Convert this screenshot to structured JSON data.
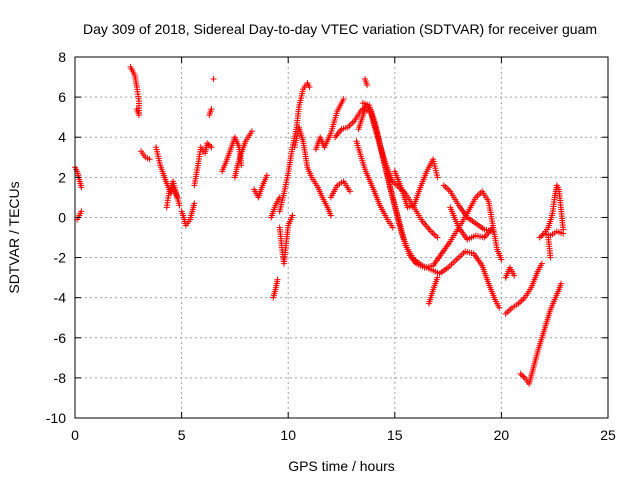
{
  "chart_data": {
    "type": "scatter",
    "title": "Day 309 of 2018, Sidereal Day-to-day VTEC variation (SDTVAR) for receiver guam",
    "xlabel": "GPS time / hours",
    "ylabel": "SDTVAR / TECUs",
    "xlim": [
      0,
      25
    ],
    "ylim": [
      -10,
      8
    ],
    "xticks": [
      "0",
      "5",
      "10",
      "15",
      "20",
      "25"
    ],
    "yticks": [
      "-10",
      "-8",
      "-6",
      "-4",
      "-2",
      "0",
      "2",
      "4",
      "6",
      "8"
    ],
    "grid": true,
    "marker": "+",
    "color": "#ff0000",
    "tracks": [
      [
        [
          0.0,
          2.5
        ],
        [
          0.1,
          2.3
        ],
        [
          0.2,
          1.9
        ],
        [
          0.3,
          1.5
        ]
      ],
      [
        [
          0.1,
          -0.1
        ],
        [
          0.2,
          0.1
        ],
        [
          0.3,
          0.3
        ]
      ],
      [
        [
          2.6,
          7.5
        ],
        [
          2.8,
          7.1
        ],
        [
          2.9,
          6.5
        ],
        [
          3.0,
          5.8
        ],
        [
          3.0,
          5.1
        ],
        [
          2.9,
          5.4
        ]
      ],
      [
        [
          3.1,
          3.3
        ],
        [
          3.3,
          3.0
        ],
        [
          3.5,
          2.9
        ]
      ],
      [
        [
          3.8,
          3.5
        ],
        [
          4.0,
          2.6
        ],
        [
          4.3,
          1.7
        ],
        [
          4.5,
          1.2
        ],
        [
          4.6,
          1.5
        ],
        [
          4.8,
          1.0
        ]
      ],
      [
        [
          4.3,
          0.5
        ],
        [
          4.4,
          1.2
        ],
        [
          4.6,
          1.8
        ],
        [
          4.9,
          0.6
        ]
      ],
      [
        [
          5.0,
          0.3
        ],
        [
          5.1,
          0.0
        ],
        [
          5.2,
          -0.4
        ],
        [
          5.4,
          -0.1
        ],
        [
          5.5,
          0.3
        ],
        [
          5.6,
          0.7
        ]
      ],
      [
        [
          5.6,
          1.6
        ],
        [
          5.8,
          2.8
        ],
        [
          5.9,
          3.5
        ],
        [
          6.1,
          3.2
        ],
        [
          6.2,
          3.7
        ],
        [
          6.4,
          3.5
        ]
      ],
      [
        [
          6.3,
          5.1
        ],
        [
          6.4,
          5.4
        ]
      ],
      [
        [
          6.5,
          6.9
        ]
      ],
      [
        [
          6.9,
          2.3
        ],
        [
          7.1,
          2.8
        ],
        [
          7.3,
          3.4
        ],
        [
          7.5,
          4.0
        ],
        [
          7.7,
          3.5
        ],
        [
          7.8,
          2.6
        ]
      ],
      [
        [
          7.5,
          2.0
        ],
        [
          7.6,
          2.5
        ],
        [
          7.8,
          3.2
        ],
        [
          8.0,
          3.8
        ],
        [
          8.3,
          4.3
        ]
      ],
      [
        [
          8.4,
          1.4
        ],
        [
          8.6,
          1.0
        ],
        [
          8.8,
          1.6
        ],
        [
          9.0,
          2.1
        ]
      ],
      [
        [
          9.2,
          0.0
        ],
        [
          9.4,
          0.6
        ],
        [
          9.6,
          1.0
        ]
      ],
      [
        [
          9.3,
          -4.0
        ],
        [
          9.4,
          -3.6
        ],
        [
          9.5,
          -3.1
        ]
      ],
      [
        [
          9.6,
          -0.5
        ],
        [
          9.7,
          -1.5
        ],
        [
          9.8,
          -2.3
        ],
        [
          10.0,
          -0.4
        ],
        [
          10.2,
          0.1
        ]
      ],
      [
        [
          9.6,
          0.3
        ],
        [
          9.8,
          1.2
        ],
        [
          10.0,
          2.2
        ],
        [
          10.2,
          3.5
        ],
        [
          10.4,
          4.5
        ],
        [
          10.5,
          5.5
        ],
        [
          10.7,
          6.4
        ],
        [
          10.9,
          6.7
        ],
        [
          11.0,
          6.5
        ]
      ],
      [
        [
          10.3,
          3.5
        ],
        [
          10.5,
          4.5
        ],
        [
          10.7,
          3.8
        ],
        [
          10.9,
          2.5
        ],
        [
          11.1,
          2.0
        ],
        [
          11.4,
          1.5
        ],
        [
          11.6,
          1.0
        ],
        [
          11.8,
          0.6
        ],
        [
          12.0,
          0.1
        ]
      ],
      [
        [
          11.3,
          3.4
        ],
        [
          11.5,
          4.0
        ],
        [
          11.7,
          3.5
        ],
        [
          12.0,
          4.2
        ],
        [
          12.3,
          5.3
        ],
        [
          12.6,
          5.9
        ]
      ],
      [
        [
          12.0,
          1.0
        ],
        [
          12.3,
          1.6
        ],
        [
          12.6,
          1.8
        ],
        [
          12.9,
          1.3
        ]
      ],
      [
        [
          12.2,
          4.0
        ],
        [
          12.5,
          4.4
        ],
        [
          12.8,
          4.5
        ],
        [
          13.1,
          4.8
        ],
        [
          13.4,
          5.3
        ],
        [
          13.7,
          5.6
        ],
        [
          13.9,
          5.3
        ],
        [
          14.1,
          4.6
        ],
        [
          14.3,
          3.6
        ],
        [
          14.6,
          2.3
        ],
        [
          14.9,
          1.0
        ],
        [
          15.2,
          -0.3
        ],
        [
          15.5,
          -1.4
        ],
        [
          15.9,
          -2.1
        ],
        [
          16.3,
          -2.4
        ],
        [
          16.7,
          -2.6
        ],
        [
          17.1,
          -2.8
        ],
        [
          17.5,
          -2.5
        ],
        [
          17.9,
          -2.1
        ],
        [
          18.3,
          -1.7
        ],
        [
          18.7,
          -1.8
        ],
        [
          19.1,
          -2.4
        ],
        [
          19.4,
          -3.3
        ],
        [
          19.7,
          -4.1
        ],
        [
          19.9,
          -4.5
        ]
      ],
      [
        [
          13.3,
          4.4
        ],
        [
          13.6,
          5.4
        ],
        [
          13.9,
          5.2
        ],
        [
          14.2,
          4.1
        ],
        [
          14.5,
          2.8
        ],
        [
          14.8,
          1.4
        ],
        [
          15.1,
          0.2
        ],
        [
          15.4,
          -1.0
        ],
        [
          15.7,
          -1.9
        ],
        [
          16.0,
          -2.3
        ],
        [
          16.4,
          -2.5
        ],
        [
          16.8,
          -2.4
        ],
        [
          17.2,
          -1.8
        ],
        [
          17.6,
          -1.2
        ],
        [
          18.0,
          -0.5
        ],
        [
          18.4,
          0.2
        ],
        [
          18.8,
          1.0
        ],
        [
          19.1,
          1.3
        ],
        [
          19.4,
          0.8
        ],
        [
          19.6,
          -0.4
        ],
        [
          19.8,
          -1.6
        ],
        [
          20.0,
          -2.1
        ]
      ],
      [
        [
          13.5,
          5.7
        ],
        [
          13.8,
          5.6
        ],
        [
          14.0,
          4.7
        ],
        [
          14.3,
          3.6
        ],
        [
          14.6,
          2.6
        ],
        [
          14.9,
          1.8
        ],
        [
          15.2,
          1.5
        ],
        [
          15.5,
          1.2
        ],
        [
          15.9,
          0.5
        ],
        [
          16.3,
          -0.2
        ],
        [
          16.7,
          -0.7
        ],
        [
          17.0,
          -1.0
        ]
      ],
      [
        [
          13.6,
          6.9
        ],
        [
          13.7,
          6.6
        ]
      ],
      [
        [
          13.2,
          3.8
        ],
        [
          13.6,
          2.4
        ],
        [
          14.0,
          1.4
        ],
        [
          14.3,
          0.6
        ],
        [
          14.6,
          0.0
        ],
        [
          14.9,
          -0.5
        ]
      ],
      [
        [
          15.0,
          2.3
        ],
        [
          15.3,
          1.5
        ],
        [
          15.6,
          0.5
        ],
        [
          15.9,
          0.6
        ],
        [
          16.2,
          1.5
        ],
        [
          16.5,
          2.3
        ],
        [
          16.8,
          2.9
        ],
        [
          17.0,
          2.0
        ]
      ],
      [
        [
          16.6,
          -4.3
        ],
        [
          16.8,
          -3.6
        ],
        [
          17.0,
          -3.0
        ]
      ],
      [
        [
          17.3,
          1.6
        ],
        [
          17.6,
          1.3
        ],
        [
          18.0,
          0.6
        ],
        [
          18.4,
          0.0
        ],
        [
          18.8,
          -0.3
        ],
        [
          19.2,
          -0.6
        ],
        [
          19.6,
          -0.7
        ]
      ],
      [
        [
          17.6,
          0.5
        ],
        [
          18.0,
          -0.5
        ],
        [
          18.4,
          -1.1
        ],
        [
          18.8,
          -0.9
        ],
        [
          19.2,
          -1.0
        ],
        [
          19.6,
          -0.5
        ]
      ],
      [
        [
          20.2,
          -3.0
        ],
        [
          20.4,
          -2.5
        ],
        [
          20.6,
          -2.9
        ]
      ],
      [
        [
          20.2,
          -4.8
        ],
        [
          20.5,
          -4.5
        ],
        [
          20.8,
          -4.3
        ],
        [
          21.1,
          -4.0
        ],
        [
          21.4,
          -3.5
        ],
        [
          21.7,
          -2.7
        ],
        [
          21.9,
          -2.3
        ]
      ],
      [
        [
          20.9,
          -7.8
        ],
        [
          21.1,
          -8.0
        ],
        [
          21.3,
          -8.3
        ],
        [
          21.5,
          -7.5
        ],
        [
          21.7,
          -6.7
        ],
        [
          21.9,
          -6.0
        ],
        [
          22.1,
          -5.3
        ],
        [
          22.3,
          -4.6
        ],
        [
          22.5,
          -4.1
        ],
        [
          22.7,
          -3.6
        ],
        [
          22.8,
          -3.3
        ]
      ],
      [
        [
          21.8,
          -1.0
        ],
        [
          22.0,
          -0.8
        ],
        [
          22.2,
          -0.5
        ],
        [
          22.4,
          0.2
        ],
        [
          22.5,
          1.0
        ],
        [
          22.6,
          1.6
        ],
        [
          22.7,
          1.4
        ],
        [
          22.8,
          0.4
        ],
        [
          22.9,
          -0.6
        ]
      ],
      [
        [
          22.0,
          -0.8
        ],
        [
          22.3,
          -0.9
        ],
        [
          22.6,
          -0.7
        ],
        [
          22.9,
          -0.8
        ]
      ],
      [
        [
          22.2,
          -1.0
        ],
        [
          22.3,
          -2.0
        ]
      ]
    ]
  }
}
